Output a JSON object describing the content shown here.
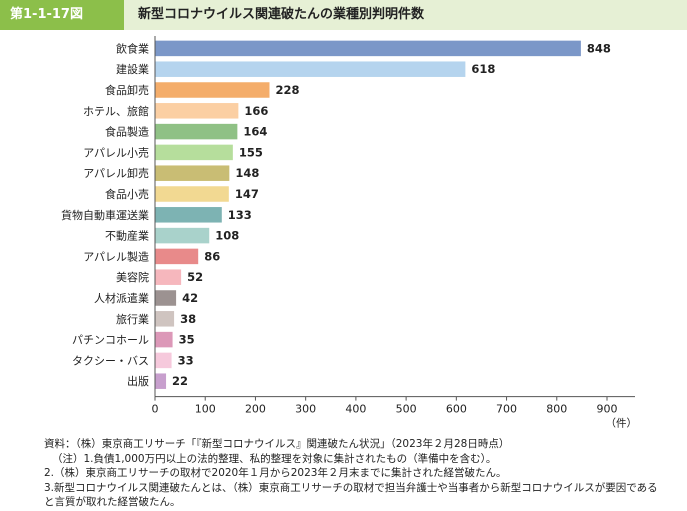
{
  "header": {
    "figure_number": "第1-1-17図",
    "title": "新型コロナウイルス関連破たんの業種別判明件数"
  },
  "chart_data": {
    "type": "bar",
    "orientation": "horizontal",
    "categories": [
      "飲食業",
      "建設業",
      "食品卸売",
      "ホテル、旅館",
      "食品製造",
      "アパレル小売",
      "アパレル卸売",
      "食品小売",
      "貨物自動車運送業",
      "不動産業",
      "アパレル製造",
      "美容院",
      "人材派遣業",
      "旅行業",
      "パチンコホール",
      "タクシー・バス",
      "出版"
    ],
    "values": [
      848,
      618,
      228,
      166,
      164,
      155,
      148,
      147,
      133,
      108,
      86,
      52,
      42,
      38,
      35,
      33,
      22
    ],
    "colors": [
      "#7b97c8",
      "#b5d4ee",
      "#f4ad6a",
      "#fbcfa3",
      "#8fc185",
      "#b6de9c",
      "#c9bd74",
      "#f2d992",
      "#7db3b3",
      "#a9d2cb",
      "#e88a8a",
      "#f6b7bd",
      "#9c9291",
      "#cfc4c0",
      "#dc98b8",
      "#f6c9dc",
      "#c79fcd"
    ],
    "xlabel": "（件）",
    "xlim": [
      0,
      900
    ],
    "xticks": [
      0,
      100,
      200,
      300,
      400,
      500,
      600,
      700,
      800,
      900
    ],
    "grid": false
  },
  "notes": {
    "source": "資料：（株）東京商工リサーチ「『新型コロナウイルス』関連破たん状況」（2023年２月28日時点）",
    "note1": "（注）1.負債1,000万円以上の法的整理、私的整理を対象に集計されたもの（準備中を含む）。",
    "note2": "2.（株）東京商工リサーチの取材で2020年１月から2023年２月末までに集計された経営破たん。",
    "note3": "3.新型コロナウイルス関連破たんとは、（株）東京商工リサーチの取材で担当弁護士や当事者から新型コロナウイルスが要因であると言質が取れた経営破たん。"
  }
}
